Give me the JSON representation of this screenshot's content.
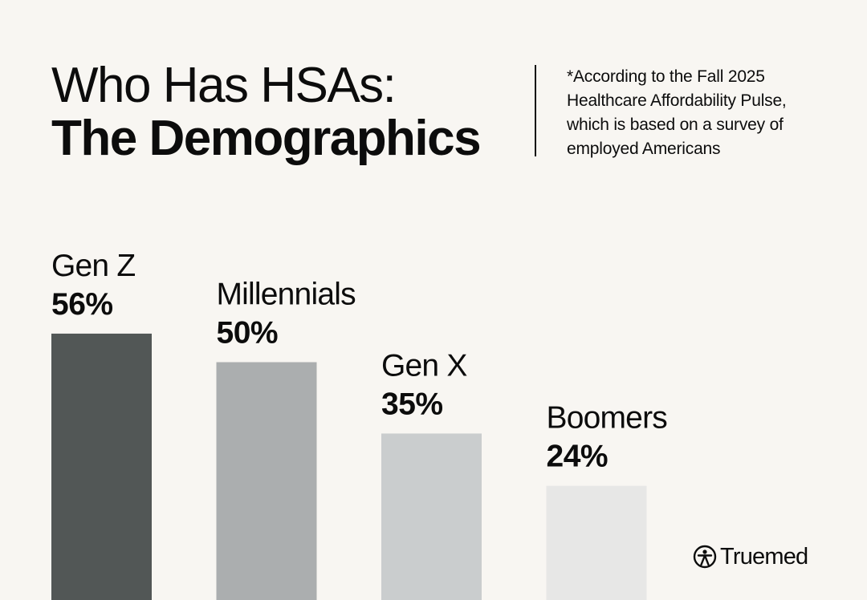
{
  "header": {
    "title_line1": "Who Has HSAs:",
    "title_line2": "The Demographics",
    "footnote_lines": [
      "*According to the Fall 2025",
      "Healthcare Affordability Pulse,",
      "which is based on a survey of",
      "employed Americans"
    ]
  },
  "brand": {
    "name": "Truemed",
    "logo_icon": "person-circle-icon"
  },
  "colors": {
    "background": "#f8f6f2",
    "text": "#0c0c0c",
    "bars": [
      "#525756",
      "#abaeaf",
      "#cacdce",
      "#e7e7e6"
    ]
  },
  "chart_data": {
    "type": "bar",
    "categories": [
      "Gen Z",
      "Millennials",
      "Gen X",
      "Boomers"
    ],
    "values": [
      56,
      50,
      35,
      24
    ],
    "value_labels": [
      "56%",
      "50%",
      "35%",
      "24%"
    ],
    "title": "",
    "xlabel": "",
    "ylabel": "",
    "ylim": [
      0,
      100
    ],
    "grid": false,
    "legend": "none"
  }
}
